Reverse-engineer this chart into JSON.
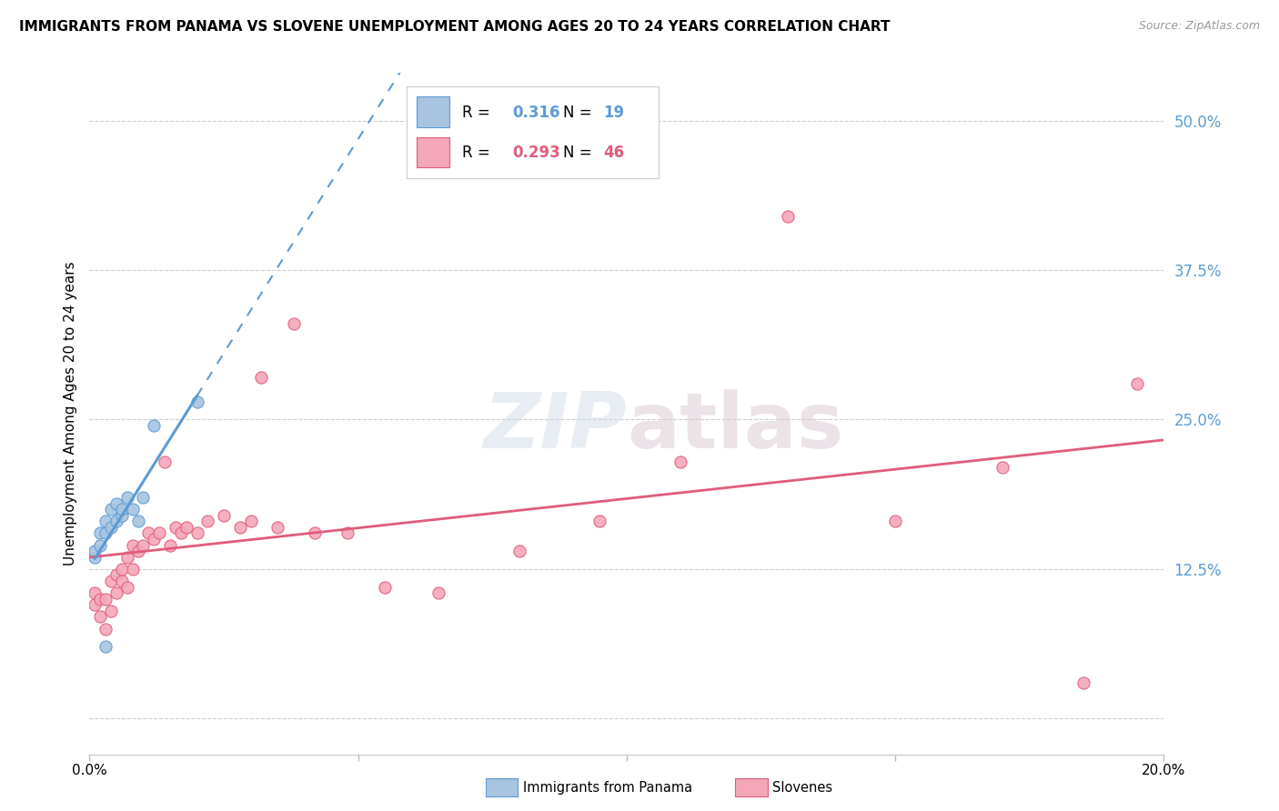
{
  "title": "IMMIGRANTS FROM PANAMA VS SLOVENE UNEMPLOYMENT AMONG AGES 20 TO 24 YEARS CORRELATION CHART",
  "source": "Source: ZipAtlas.com",
  "ylabel": "Unemployment Among Ages 20 to 24 years",
  "ytick_values": [
    0.0,
    0.125,
    0.25,
    0.375,
    0.5
  ],
  "xlim": [
    0.0,
    0.2
  ],
  "ylim": [
    -0.03,
    0.54
  ],
  "r_panama": 0.316,
  "n_panama": 19,
  "r_slovene": 0.293,
  "n_slovene": 46,
  "color_panama": "#a8c4e0",
  "color_slovene": "#f4a7b9",
  "line_color_panama": "#5b9bd5",
  "line_color_slovene": "#e05c7a",
  "panama_x": [
    0.001,
    0.001,
    0.002,
    0.002,
    0.003,
    0.003,
    0.004,
    0.004,
    0.005,
    0.005,
    0.006,
    0.006,
    0.007,
    0.008,
    0.009,
    0.01,
    0.012,
    0.02,
    0.003
  ],
  "panama_y": [
    0.135,
    0.14,
    0.145,
    0.155,
    0.155,
    0.165,
    0.16,
    0.175,
    0.165,
    0.18,
    0.17,
    0.175,
    0.185,
    0.175,
    0.165,
    0.185,
    0.245,
    0.265,
    0.06
  ],
  "slovene_x": [
    0.001,
    0.001,
    0.002,
    0.002,
    0.003,
    0.003,
    0.004,
    0.004,
    0.005,
    0.005,
    0.006,
    0.006,
    0.007,
    0.007,
    0.008,
    0.008,
    0.009,
    0.01,
    0.011,
    0.012,
    0.013,
    0.014,
    0.015,
    0.016,
    0.017,
    0.018,
    0.02,
    0.022,
    0.025,
    0.028,
    0.03,
    0.032,
    0.035,
    0.038,
    0.042,
    0.048,
    0.055,
    0.065,
    0.08,
    0.095,
    0.11,
    0.13,
    0.15,
    0.17,
    0.185,
    0.195
  ],
  "slovene_y": [
    0.095,
    0.105,
    0.085,
    0.1,
    0.075,
    0.1,
    0.09,
    0.115,
    0.105,
    0.12,
    0.115,
    0.125,
    0.11,
    0.135,
    0.125,
    0.145,
    0.14,
    0.145,
    0.155,
    0.15,
    0.155,
    0.215,
    0.145,
    0.16,
    0.155,
    0.16,
    0.155,
    0.165,
    0.17,
    0.16,
    0.165,
    0.285,
    0.16,
    0.33,
    0.155,
    0.155,
    0.11,
    0.105,
    0.14,
    0.165,
    0.215,
    0.42,
    0.165,
    0.21,
    0.03,
    0.28
  ]
}
